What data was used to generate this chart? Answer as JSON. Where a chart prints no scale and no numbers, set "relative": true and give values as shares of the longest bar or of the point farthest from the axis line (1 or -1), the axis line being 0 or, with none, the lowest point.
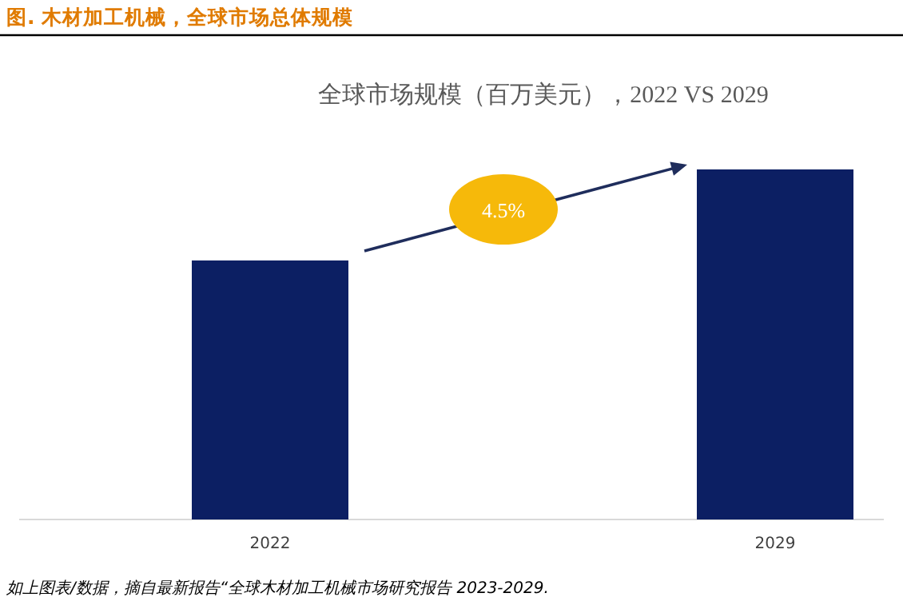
{
  "chart_data": {
    "type": "bar",
    "relative": true,
    "title": "图.     木材加工机械，全球市场总体规模",
    "subtitle": "全球市场规模（百万美元），2022 VS 2029",
    "categories": [
      "2022",
      "2029"
    ],
    "values": [
      0.74,
      1
    ],
    "color": "#0c1f63",
    "annotations": [
      "4.5%",
      "如上图表/数据，摘自最新报告“全球木材加工机械市场研究报告 2023-2029."
    ]
  }
}
